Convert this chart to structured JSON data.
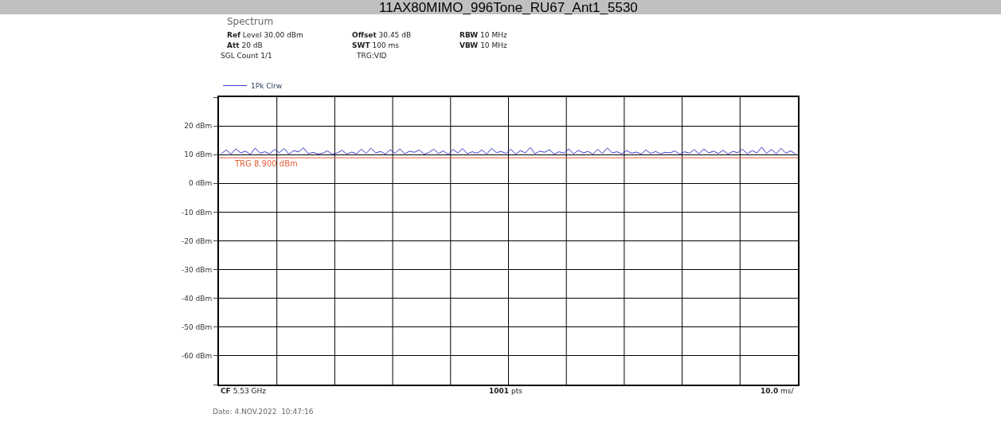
{
  "chart_data": {
    "type": "line",
    "title": "11AX80MIMO_996Tone_RU67_Ant1_5530",
    "categories": [
      null,
      null,
      null,
      null,
      null,
      null,
      null,
      null,
      null,
      null,
      null,
      null,
      null,
      null,
      null,
      null,
      null,
      null,
      null,
      null,
      null,
      null,
      null,
      null,
      null,
      null,
      null,
      null,
      null,
      null,
      null,
      null,
      null,
      null,
      null,
      null,
      null,
      null,
      null,
      null,
      null,
      null,
      null,
      null,
      null,
      null,
      null,
      null,
      null,
      null,
      null,
      null,
      null,
      null,
      null,
      null,
      null,
      null,
      null,
      null,
      null,
      null,
      null,
      null,
      null,
      null,
      null,
      null,
      null,
      null,
      null,
      null,
      null,
      null,
      null,
      null,
      null,
      null,
      null,
      null,
      null,
      null,
      null,
      null,
      null,
      null,
      null,
      null,
      null,
      null,
      null,
      null,
      null,
      null,
      null,
      null,
      null,
      null,
      null,
      null,
      null,
      null,
      null,
      null,
      null,
      null,
      null,
      null,
      null,
      null,
      null,
      null,
      null,
      null,
      null,
      null,
      null,
      null,
      null,
      null
    ],
    "series": [
      {
        "name": "1Pk Clrw",
        "color": "#3a3ac8",
        "values": [
          10.4,
          11.6,
          10.2,
          12.0,
          10.6,
          11.2,
          10.1,
          12.3,
          10.5,
          11.0,
          10.3,
          11.8,
          10.7,
          12.1,
          10.2,
          11.4,
          10.9,
          12.4,
          10.3,
          10.8,
          10.2,
          10.5,
          11.3,
          10.1,
          10.6,
          11.5,
          10.2,
          10.9,
          10.3,
          11.9,
          10.4,
          12.2,
          10.6,
          11.1,
          10.2,
          11.7,
          10.5,
          12.0,
          10.3,
          11.2,
          10.8,
          11.6,
          10.2,
          10.7,
          11.9,
          10.4,
          11.3,
          10.1,
          11.8,
          10.6,
          12.1,
          10.3,
          11.0,
          10.5,
          11.6,
          10.2,
          12.2,
          10.7,
          11.1,
          10.4,
          11.9,
          10.2,
          11.4,
          10.6,
          12.5,
          10.3,
          11.2,
          10.8,
          11.7,
          10.2,
          11.0,
          10.5,
          12.0,
          10.3,
          11.5,
          10.6,
          11.1,
          10.2,
          11.8,
          10.4,
          12.3,
          10.6,
          11.0,
          10.3,
          11.4,
          10.5,
          10.9,
          10.2,
          11.6,
          10.4,
          11.1,
          10.3,
          10.8,
          10.6,
          11.3,
          10.2,
          11.0,
          10.5,
          11.7,
          10.3,
          12.0,
          10.6,
          11.2,
          10.4,
          11.5,
          10.2,
          11.1,
          10.7,
          11.9,
          10.3,
          11.4,
          10.6,
          12.6,
          10.4,
          11.8,
          10.3,
          12.2,
          10.5,
          11.3,
          10.2
        ]
      }
    ],
    "ylim": [
      -70,
      30
    ],
    "yticks": [
      {
        "value": 30,
        "label": null
      },
      {
        "value": 20,
        "label": "20 dBm"
      },
      {
        "value": 10,
        "label": "10 dBm"
      },
      {
        "value": 0,
        "label": "0 dBm"
      },
      {
        "value": -10,
        "label": "-10 dBm"
      },
      {
        "value": -20,
        "label": "-20 dBm"
      },
      {
        "value": -30,
        "label": "-30 dBm"
      },
      {
        "value": -40,
        "label": "-40 dBm"
      },
      {
        "value": -50,
        "label": "-50 dBm"
      },
      {
        "value": -60,
        "label": "-60 dBm"
      },
      {
        "value": -70,
        "label": null
      }
    ],
    "grid": true,
    "legend": "top left",
    "marker": "none",
    "line_style": "solid",
    "ref_lines": [
      {
        "axis": "y",
        "value": 8.9,
        "label": "TRG 8.900 dBm",
        "color": "#e0603c"
      }
    ],
    "annotations": [
      "Spectrum",
      "Ref Level 30.00 dBm",
      "Offset 30.45 dB",
      "RBW 10 MHz",
      "Att 20 dB",
      "SWT 100 ms",
      "VBW 10 MHz",
      "SGL Count 1/1",
      "TRG:VID",
      "CF 5.53 GHz",
      "1001 pts",
      "10.0 ms/",
      "Date: 4.NOV.2022  10:47:16"
    ]
  }
}
